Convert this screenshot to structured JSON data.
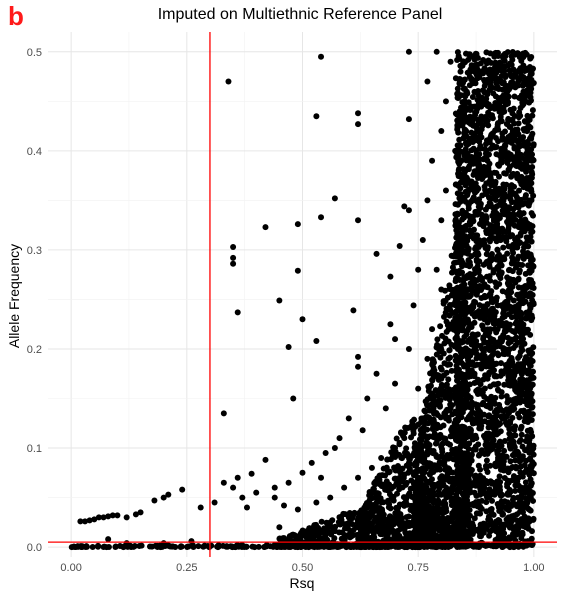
{
  "panel_label": "b",
  "chart_data": {
    "type": "scatter",
    "title": "Imputed on Multiethnic Reference Panel",
    "xlabel": "Rsq",
    "ylabel": "Allele Frequency",
    "xlim": [
      -0.05,
      1.05
    ],
    "ylim": [
      -0.01,
      0.52
    ],
    "x_ticks": [
      0.0,
      0.25,
      0.5,
      0.75,
      1.0
    ],
    "x_tick_labels": [
      "0.00",
      "0.25",
      "0.50",
      "0.75",
      "1.00"
    ],
    "y_ticks": [
      0.0,
      0.1,
      0.2,
      0.3,
      0.4,
      0.5
    ],
    "y_tick_labels": [
      "0.0",
      "0.1",
      "0.2",
      "0.3",
      "0.4",
      "0.5"
    ],
    "grid": true,
    "reference_lines": [
      {
        "orientation": "vertical",
        "value": 0.3,
        "color": "#ff0000"
      },
      {
        "orientation": "horizontal",
        "value": 0.005,
        "color": "#ff0000"
      }
    ],
    "point_color": "#000000",
    "points": [
      [
        0.34,
        0.47
      ],
      [
        0.54,
        0.495
      ],
      [
        0.73,
        0.5
      ],
      [
        0.53,
        0.435
      ],
      [
        0.62,
        0.438
      ],
      [
        0.62,
        0.427
      ],
      [
        0.77,
        0.47
      ],
      [
        0.79,
        0.5
      ],
      [
        0.82,
        0.49
      ],
      [
        0.73,
        0.432
      ],
      [
        0.35,
        0.303
      ],
      [
        0.35,
        0.292
      ],
      [
        0.35,
        0.286
      ],
      [
        0.36,
        0.237
      ],
      [
        0.42,
        0.323
      ],
      [
        0.49,
        0.326
      ],
      [
        0.54,
        0.333
      ],
      [
        0.57,
        0.352
      ],
      [
        0.62,
        0.33
      ],
      [
        0.66,
        0.296
      ],
      [
        0.49,
        0.279
      ],
      [
        0.45,
        0.249
      ],
      [
        0.5,
        0.23
      ],
      [
        0.47,
        0.202
      ],
      [
        0.53,
        0.208
      ],
      [
        0.61,
        0.239
      ],
      [
        0.48,
        0.15
      ],
      [
        0.33,
        0.135
      ],
      [
        0.62,
        0.192
      ],
      [
        0.62,
        0.182
      ],
      [
        0.72,
        0.344
      ],
      [
        0.73,
        0.34
      ],
      [
        0.71,
        0.304
      ],
      [
        0.69,
        0.273
      ],
      [
        0.74,
        0.244
      ],
      [
        0.69,
        0.225
      ],
      [
        0.7,
        0.21
      ],
      [
        0.73,
        0.2
      ],
      [
        0.66,
        0.175
      ],
      [
        0.7,
        0.165
      ],
      [
        0.64,
        0.15
      ],
      [
        0.68,
        0.14
      ],
      [
        0.6,
        0.13
      ],
      [
        0.63,
        0.118
      ],
      [
        0.58,
        0.11
      ],
      [
        0.55,
        0.095
      ],
      [
        0.52,
        0.085
      ],
      [
        0.57,
        0.1
      ],
      [
        0.5,
        0.075
      ],
      [
        0.54,
        0.07
      ],
      [
        0.47,
        0.065
      ],
      [
        0.44,
        0.06
      ],
      [
        0.4,
        0.055
      ],
      [
        0.37,
        0.05
      ],
      [
        0.33,
        0.065
      ],
      [
        0.31,
        0.045
      ],
      [
        0.28,
        0.04
      ],
      [
        0.24,
        0.058
      ],
      [
        0.21,
        0.053
      ],
      [
        0.2,
        0.05
      ],
      [
        0.18,
        0.047
      ],
      [
        0.15,
        0.035
      ],
      [
        0.14,
        0.033
      ],
      [
        0.12,
        0.03
      ],
      [
        0.1,
        0.032
      ],
      [
        0.09,
        0.032
      ],
      [
        0.08,
        0.031
      ],
      [
        0.07,
        0.03
      ],
      [
        0.06,
        0.03
      ],
      [
        0.05,
        0.028
      ],
      [
        0.04,
        0.027
      ],
      [
        0.03,
        0.026
      ],
      [
        0.02,
        0.026
      ],
      [
        0.08,
        0.008
      ],
      [
        0.12,
        0.004
      ],
      [
        0.2,
        0.004
      ],
      [
        0.26,
        0.006
      ],
      [
        0.44,
        0.05
      ],
      [
        0.46,
        0.042
      ],
      [
        0.49,
        0.038
      ],
      [
        0.53,
        0.045
      ],
      [
        0.56,
        0.05
      ],
      [
        0.59,
        0.06
      ],
      [
        0.62,
        0.07
      ],
      [
        0.65,
        0.08
      ],
      [
        0.67,
        0.09
      ],
      [
        0.7,
        0.1
      ],
      [
        0.72,
        0.11
      ],
      [
        0.74,
        0.12
      ],
      [
        0.76,
        0.13
      ],
      [
        0.78,
        0.15
      ],
      [
        0.8,
        0.17
      ],
      [
        0.79,
        0.28
      ],
      [
        0.8,
        0.33
      ],
      [
        0.81,
        0.36
      ],
      [
        0.83,
        0.4
      ],
      [
        0.84,
        0.44
      ],
      [
        0.84,
        0.47
      ],
      [
        0.8,
        0.26
      ],
      [
        0.78,
        0.22
      ],
      [
        0.77,
        0.19
      ],
      [
        0.75,
        0.16
      ],
      [
        0.75,
        0.28
      ],
      [
        0.76,
        0.31
      ],
      [
        0.77,
        0.35
      ],
      [
        0.78,
        0.39
      ],
      [
        0.8,
        0.42
      ],
      [
        0.81,
        0.45
      ],
      [
        0.42,
        0.088
      ],
      [
        0.39,
        0.074
      ],
      [
        0.36,
        0.07
      ],
      [
        0.35,
        0.06
      ],
      [
        0.38,
        0.04
      ],
      [
        0.45,
        0.02
      ],
      [
        0.5,
        0.015
      ],
      [
        0.56,
        0.025
      ],
      [
        0.6,
        0.03
      ],
      [
        0.64,
        0.04
      ],
      [
        0.66,
        0.05
      ],
      [
        0.68,
        0.06
      ],
      [
        0.71,
        0.07
      ],
      [
        0.73,
        0.085
      ],
      [
        0.75,
        0.095
      ],
      [
        0.77,
        0.11
      ],
      [
        0.79,
        0.12
      ],
      [
        0.82,
        0.14
      ]
    ],
    "density_bands": [
      {
        "xmin": 0.83,
        "xmax": 1.0,
        "ymin": 0.0,
        "ymax": 0.5
      },
      {
        "xmin": 0.74,
        "xmax": 0.86,
        "ymin": 0.0,
        "ymax": 0.32
      },
      {
        "xmin": 0.62,
        "xmax": 0.76,
        "ymin": 0.0,
        "ymax": 0.13
      },
      {
        "xmin": 0.45,
        "xmax": 0.64,
        "ymin": 0.0,
        "ymax": 0.035
      },
      {
        "xmin": 0.0,
        "xmax": 1.0,
        "ymin": 0.0,
        "ymax": 0.004
      }
    ]
  }
}
